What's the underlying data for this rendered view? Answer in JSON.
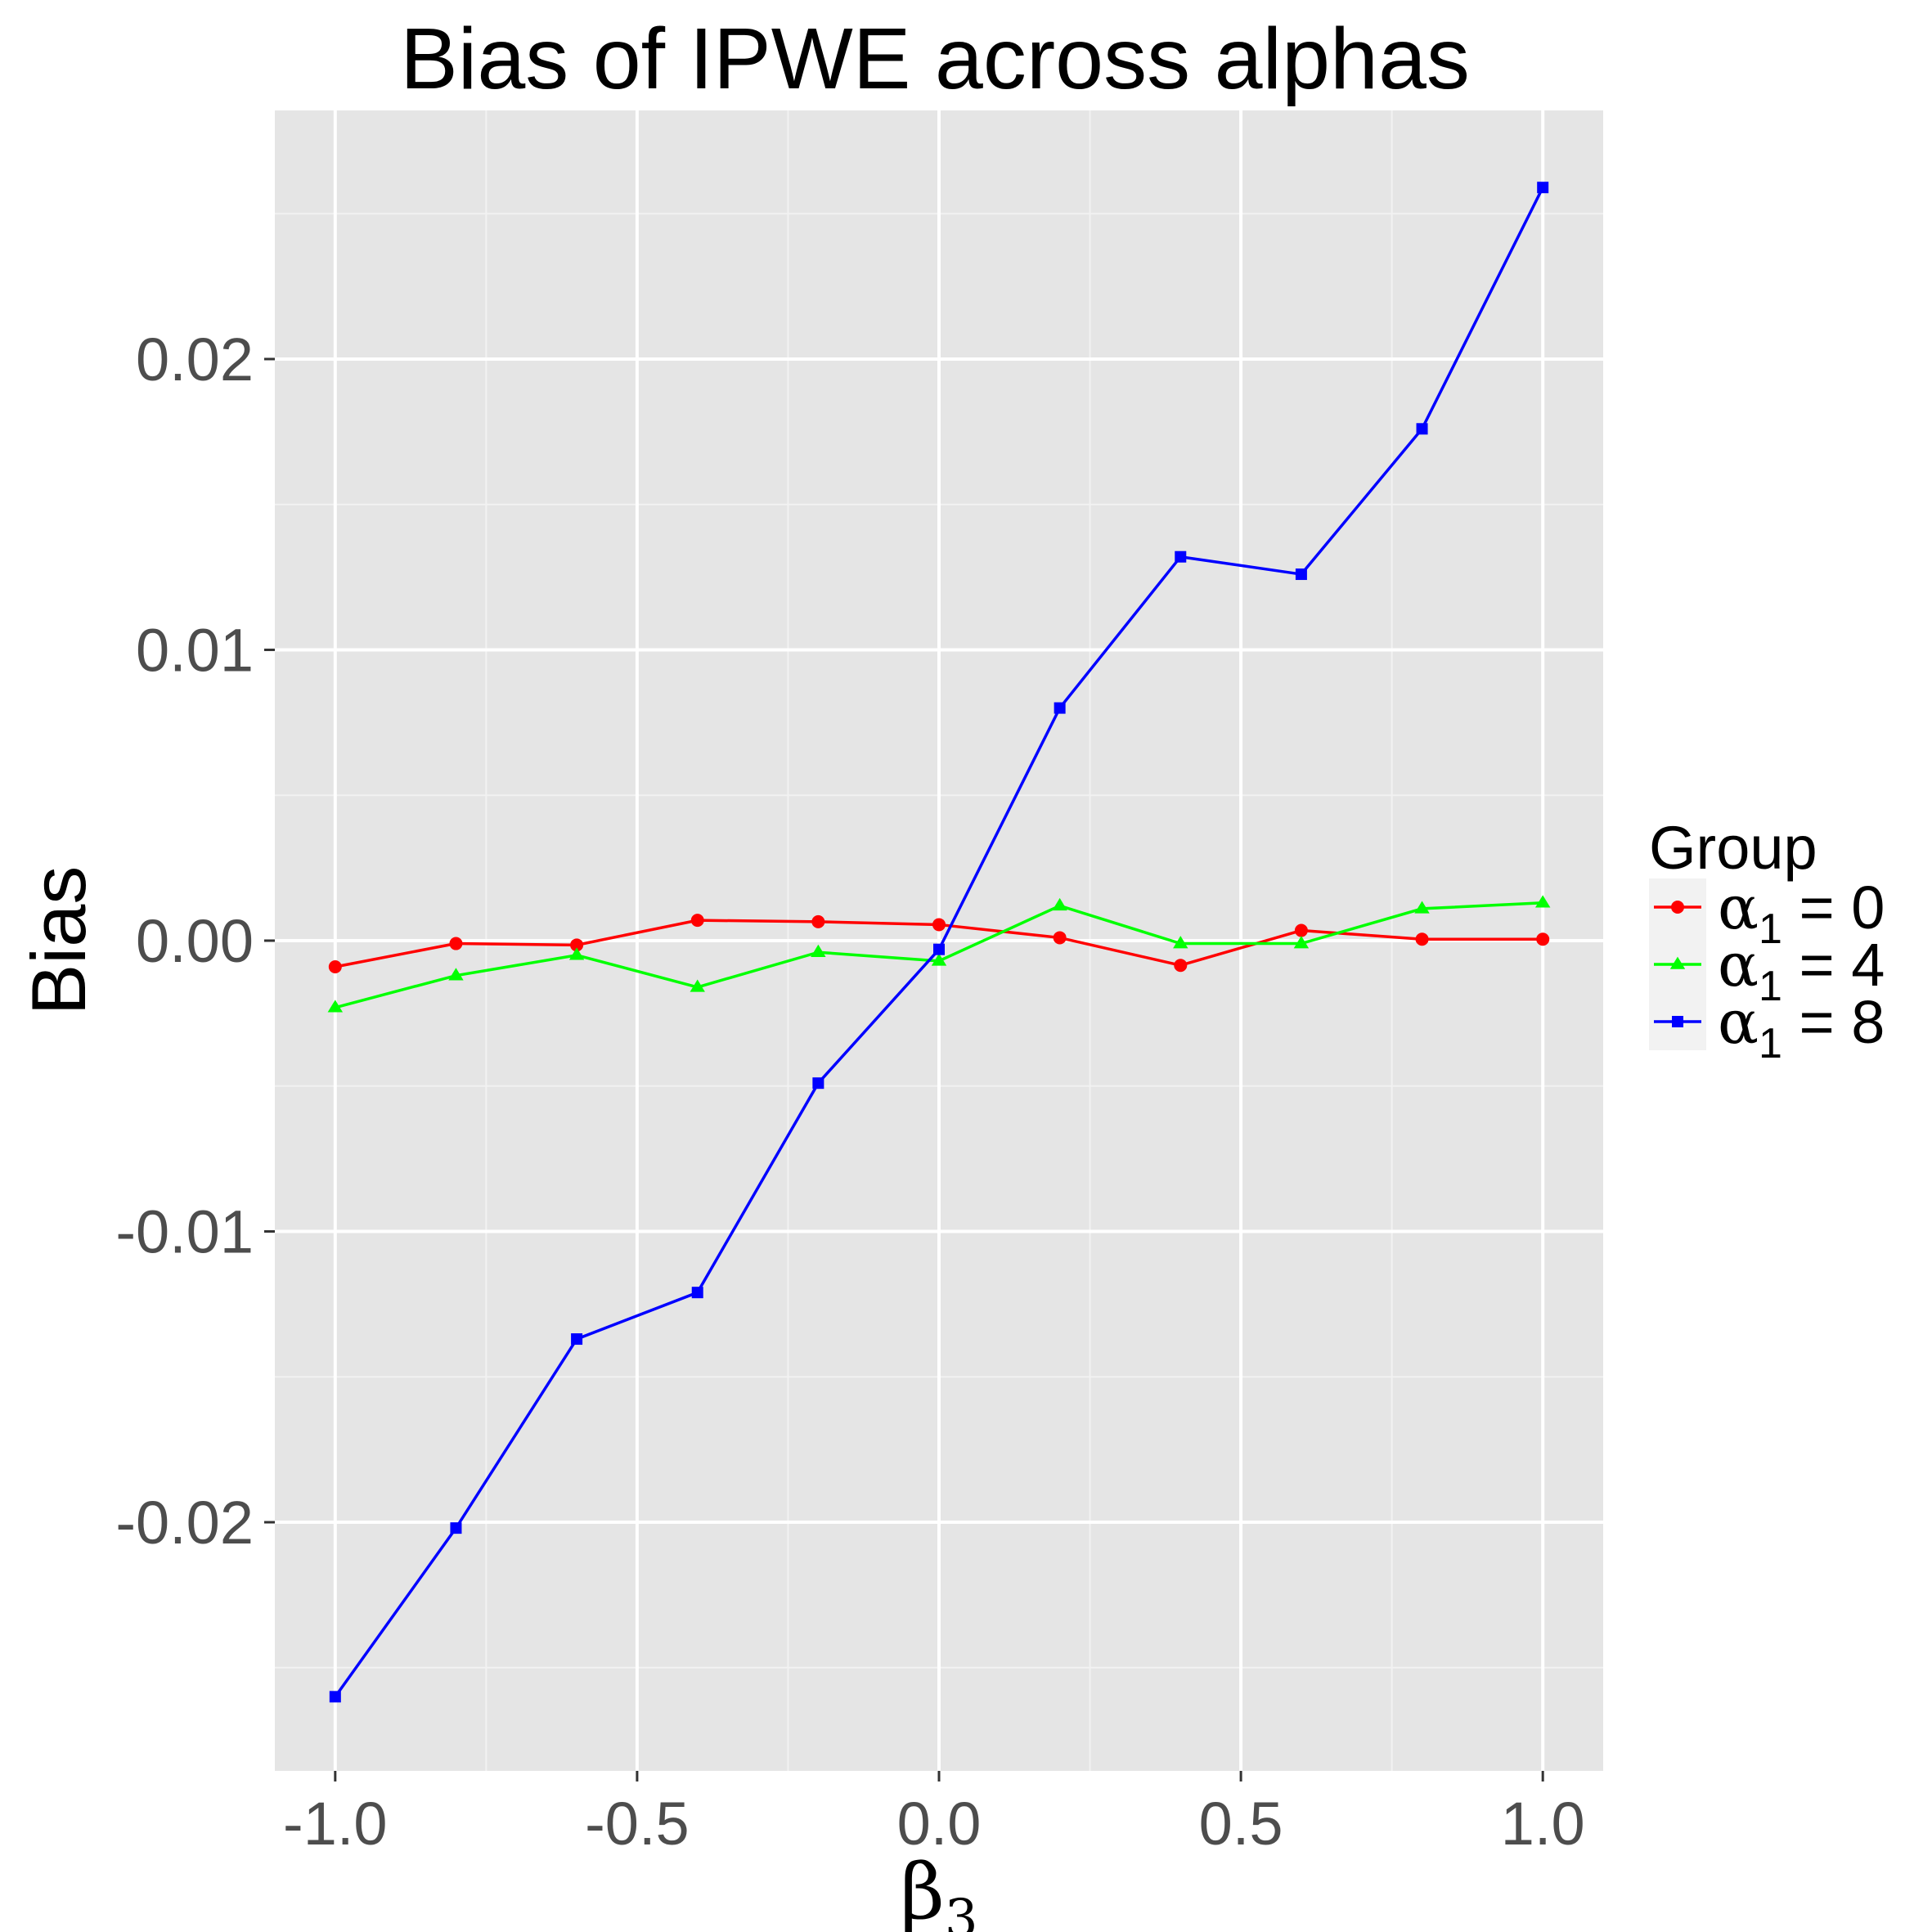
{
  "chart_data": {
    "type": "line",
    "title": "Bias of IPWE across alphas",
    "xlabel": {
      "symbol": "β",
      "subscript": "3"
    },
    "ylabel": "Bias",
    "xlim": [
      -1.1,
      1.1
    ],
    "ylim": [
      -0.02855,
      0.02855
    ],
    "x_ticks": [
      -1.0,
      -0.5,
      0.0,
      0.5,
      1.0
    ],
    "x_tick_labels": [
      "-1.0",
      "-0.5",
      "0.0",
      "0.5",
      "1.0"
    ],
    "y_ticks": [
      -0.02,
      -0.01,
      0.0,
      0.01,
      0.02
    ],
    "y_tick_labels": [
      "-0.02",
      "-0.01",
      "0.00",
      "0.01",
      "0.02"
    ],
    "grid": true,
    "background": "#e5e5e5",
    "legend": {
      "title": "Group",
      "placement": "right"
    },
    "x": [
      -1.0,
      -0.8,
      -0.6,
      -0.4,
      -0.2,
      0.0,
      0.2,
      0.4,
      0.6,
      0.8,
      1.0
    ],
    "series": [
      {
        "label_symbol": "α",
        "label_subscript": "1",
        "label_rest": " = 0",
        "color": "#ff0000",
        "marker": "circle",
        "values": [
          -0.0009,
          -0.0001,
          -0.00015,
          0.0007,
          0.00065,
          0.00055,
          0.0001,
          -0.00085,
          0.00035,
          5e-05,
          5e-05
        ]
      },
      {
        "label_symbol": "α",
        "label_subscript": "1",
        "label_rest": " = 4",
        "color": "#00ff00",
        "marker": "triangle",
        "values": [
          -0.0023,
          -0.0012,
          -0.0005,
          -0.0016,
          -0.0004,
          -0.0007,
          0.0012,
          -0.0001,
          -0.0001,
          0.0011,
          0.0013
        ]
      },
      {
        "label_symbol": "α",
        "label_subscript": "1",
        "label_rest": " = 8",
        "color": "#0000ff",
        "marker": "square",
        "values": [
          -0.026,
          -0.0202,
          -0.0137,
          -0.0121,
          -0.0049,
          -0.0003,
          0.008,
          0.0132,
          0.0126,
          0.0176,
          0.0259
        ]
      }
    ]
  }
}
